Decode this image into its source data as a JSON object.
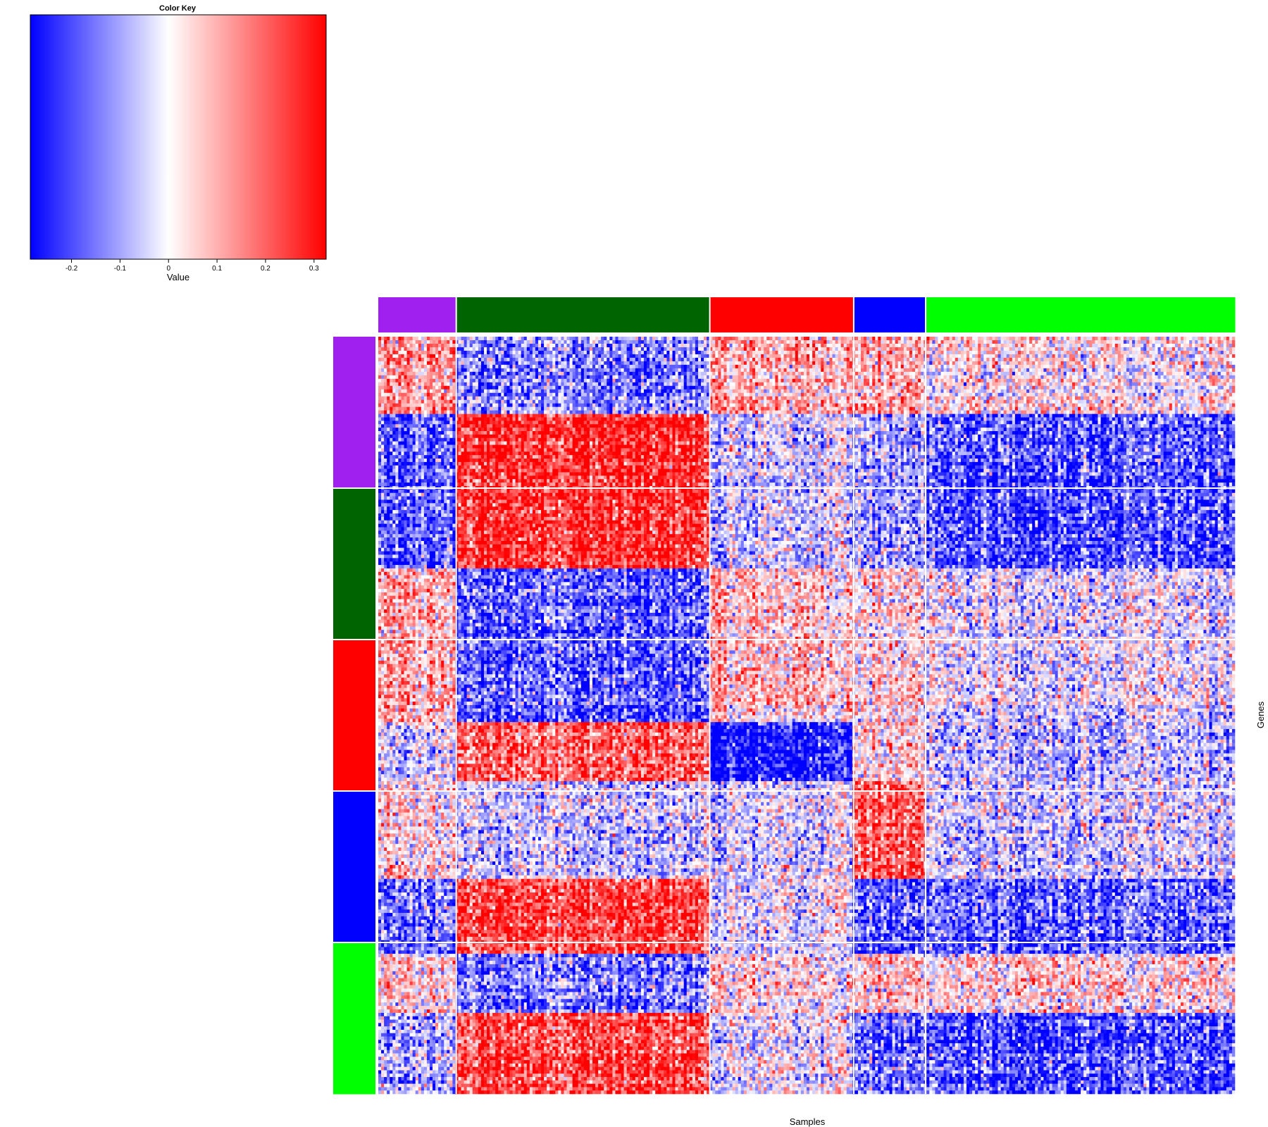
{
  "chart_data": {
    "type": "heatmap",
    "color_key": {
      "title": "Color Key",
      "xlabel": "Value",
      "range": [
        -0.285,
        0.325
      ],
      "ticks": [
        {
          "value": -0.2,
          "label": "-0.2"
        },
        {
          "value": -0.1,
          "label": "-0.1"
        },
        {
          "value": 0,
          "label": "0"
        },
        {
          "value": 0.1,
          "label": "0.1"
        },
        {
          "value": 0.2,
          "label": "0.2"
        },
        {
          "value": 0.3,
          "label": "0.3"
        }
      ],
      "low_color": "#0000ff",
      "mid_color": "#ffffff",
      "high_color": "#ff0000"
    },
    "xlabel": "Samples",
    "ylabel": "Genes",
    "sample_groups": [
      {
        "color": "#a020f0",
        "size": 0.091
      },
      {
        "color": "#006400",
        "size": 0.296
      },
      {
        "color": "#ff0000",
        "size": 0.168
      },
      {
        "color": "#0000ff",
        "size": 0.084
      },
      {
        "color": "#00ff00",
        "size": 0.361
      }
    ],
    "gene_groups": [
      {
        "color": "#a020f0",
        "size": 0.2
      },
      {
        "color": "#006400",
        "size": 0.2
      },
      {
        "color": "#ff0000",
        "size": 0.2
      },
      {
        "color": "#0000ff",
        "size": 0.2
      },
      {
        "color": "#00ff00",
        "size": 0.2
      }
    ],
    "gene_bands": [
      {
        "size": 0.102,
        "means": [
          0.12,
          -0.14,
          0.1,
          0.1,
          0.02
        ]
      },
      {
        "size": 0.204,
        "means": [
          -0.17,
          0.27,
          -0.05,
          -0.1,
          -0.19
        ]
      },
      {
        "size": 0.203,
        "means": [
          0.09,
          -0.18,
          0.07,
          0.04,
          -0.02
        ]
      },
      {
        "size": 0.078,
        "means": [
          -0.03,
          0.2,
          -0.27,
          0.05,
          -0.07
        ]
      },
      {
        "size": 0.129,
        "means": [
          0.04,
          -0.05,
          -0.03,
          0.21,
          -0.04
        ]
      },
      {
        "size": 0.099,
        "means": [
          -0.14,
          0.24,
          -0.02,
          -0.18,
          -0.17
        ]
      },
      {
        "size": 0.078,
        "means": [
          0.05,
          -0.14,
          0.04,
          0.07,
          0.05
        ]
      },
      {
        "size": 0.107,
        "means": [
          -0.08,
          0.24,
          -0.01,
          -0.16,
          -0.19
        ]
      }
    ]
  }
}
